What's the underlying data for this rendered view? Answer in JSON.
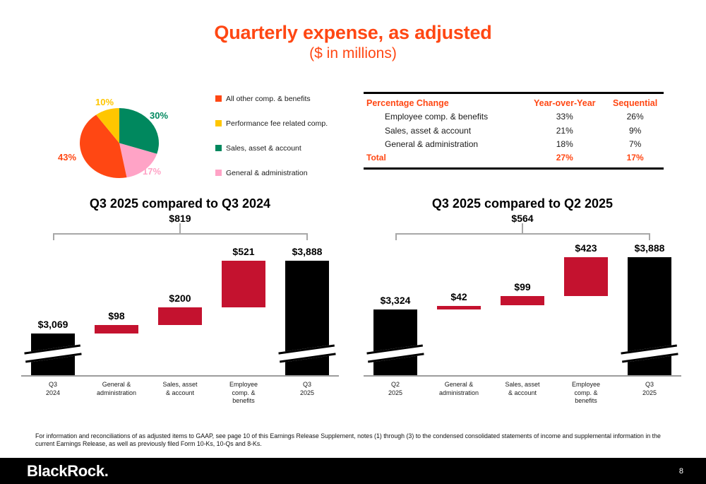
{
  "title": "Quarterly expense, as adjusted",
  "subtitle": "($ in millions)",
  "colors": {
    "brand_orange": "#FF4713",
    "yellow": "#FFC600",
    "green": "#00885E",
    "pink": "#FFA3C6",
    "crimson": "#C4122F",
    "black": "#000000",
    "axis_gray": "#9d9d9d",
    "bracket_gray": "#a8a8a8"
  },
  "chart_data": [
    {
      "type": "pie",
      "title": "Quarterly expense composition",
      "labels": [
        "All other comp. & benefits",
        "Performance fee related comp.",
        "Sales, asset & account",
        "General & administration"
      ],
      "values": [
        43,
        10,
        30,
        17
      ],
      "value_labels": [
        "43%",
        "10%",
        "30%",
        "17%"
      ],
      "colors": [
        "#FF4713",
        "#FFC600",
        "#00885E",
        "#FFA3C6"
      ],
      "draw_order": [
        2,
        3,
        0,
        1
      ],
      "legend_position": "right"
    },
    {
      "type": "table",
      "columns": [
        "Percentage Change",
        "Year-over-Year",
        "Sequential"
      ],
      "rows": [
        [
          "Employee comp. & benefits",
          "33%",
          "26%"
        ],
        [
          "Sales, asset & account",
          "21%",
          "9%"
        ],
        [
          "General & administration",
          "18%",
          "7%"
        ]
      ],
      "total_row": [
        "Total",
        "27%",
        "17%"
      ]
    },
    {
      "type": "bar",
      "subtype": "waterfall",
      "title": "Q3 2025 compared to Q3 2024",
      "total_change_label": "$819",
      "categories": [
        "Q3\n2024",
        "General &\nadministration",
        "Sales, asset\n& account",
        "Employee\ncomp. &\nbenefits",
        "Q3\n2025"
      ],
      "values": [
        3069,
        98,
        200,
        521,
        3888
      ],
      "value_labels": [
        "$3,069",
        "$98",
        "$200",
        "$521",
        "$3,888"
      ],
      "roles": [
        "total",
        "delta",
        "delta",
        "delta",
        "total"
      ],
      "axis_break_on": [
        0,
        4
      ]
    },
    {
      "type": "bar",
      "subtype": "waterfall",
      "title": "Q3 2025 compared to Q2 2025",
      "total_change_label": "$564",
      "categories": [
        "Q2\n2025",
        "General &\nadministration",
        "Sales, asset\n& account",
        "Employee\ncomp. &\nbenefits",
        "Q3\n2025"
      ],
      "values": [
        3324,
        42,
        99,
        423,
        3888
      ],
      "value_labels": [
        "$3,324",
        "$42",
        "$99",
        "$423",
        "$3,888"
      ],
      "roles": [
        "total",
        "delta",
        "delta",
        "delta",
        "total"
      ],
      "axis_break_on": [
        0,
        4
      ]
    }
  ],
  "footnote": "For information and reconciliations of as adjusted items to GAAP, see page 10 of this Earnings Release Supplement, notes (1) through (3) to the condensed consolidated statements of income and supplemental information in the current Earnings Release, as well as previously filed Form 10-Ks, 10-Qs and 8-Ks.",
  "footer_bar": {
    "logo": "BlackRock.",
    "page_number": "8"
  }
}
